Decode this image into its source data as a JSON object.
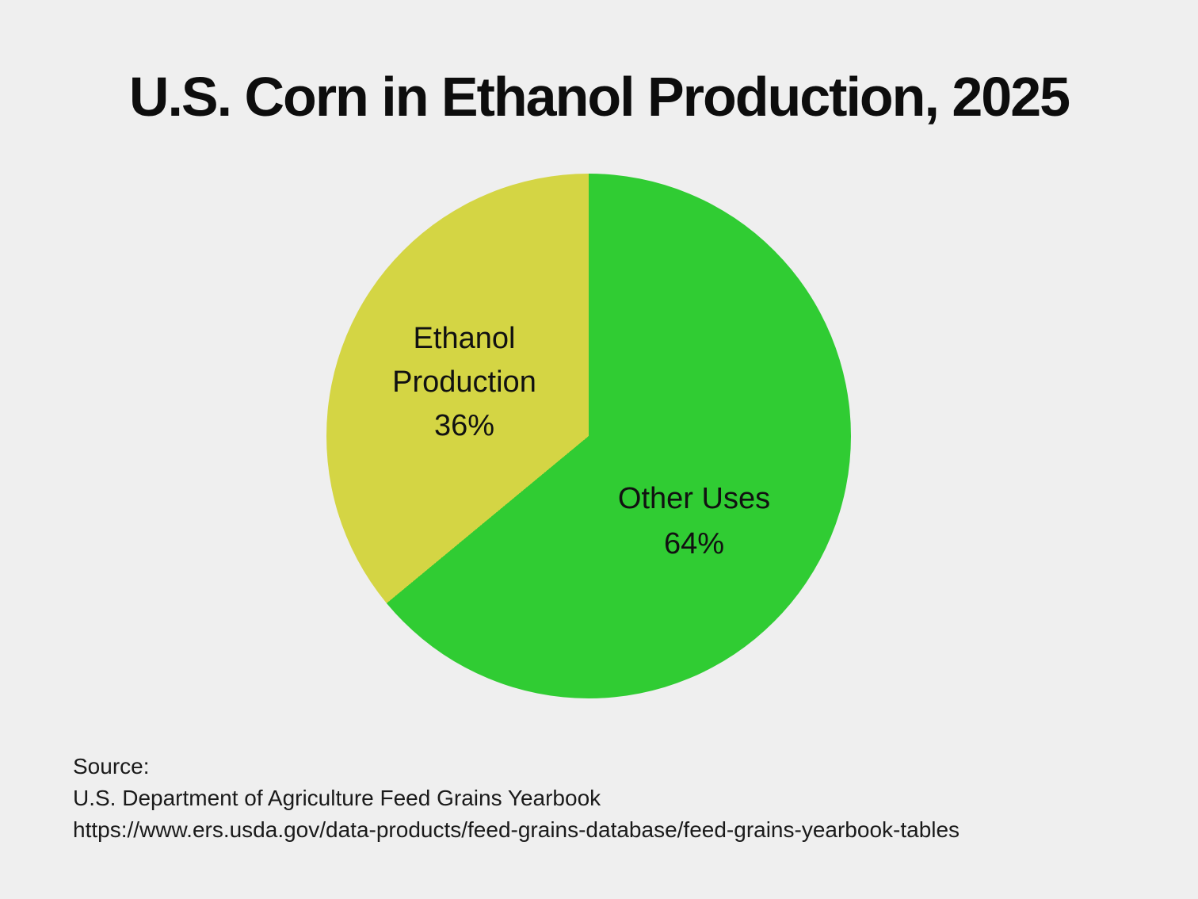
{
  "page": {
    "background_color": "#efefef"
  },
  "title": "U.S. Corn in Ethanol Production, 2025",
  "chart_data": {
    "type": "pie",
    "title": "U.S. Corn in Ethanol Production, 2025",
    "start_angle": "12-o'clock, clockwise",
    "legend_position": "labels-inside-slices",
    "slices": [
      {
        "label": "Other Uses",
        "value": 64,
        "value_label": "64%",
        "color": "#30cc33"
      },
      {
        "label": "Ethanol Production",
        "value": 36,
        "value_label": "36%",
        "color": "#d4d544"
      }
    ]
  },
  "source": {
    "line1": "Source:",
    "line2": "U.S. Department of Agriculture Feed Grains Yearbook",
    "line3": "https://www.ers.usda.gov/data-products/feed-grains-database/feed-grains-yearbook-tables"
  }
}
